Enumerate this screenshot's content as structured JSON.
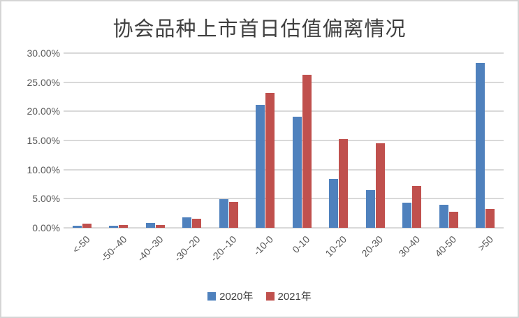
{
  "frame": {
    "background": "#ffffff",
    "border_color": "#d5d5d5"
  },
  "chart_data": {
    "type": "bar",
    "title": "协会品种上市首日估值偏离情况",
    "categories": [
      "<-50",
      "-50--40",
      "-40--30",
      "-30--20",
      "-20--10",
      "-10-0",
      "0-10",
      "10-20",
      "20-30",
      "30-40",
      "40-50",
      ">50"
    ],
    "series": [
      {
        "name": "2020年",
        "color": "#4f81bd",
        "values": [
          0.3,
          0.3,
          0.8,
          1.8,
          4.9,
          21.1,
          19.1,
          8.4,
          6.5,
          4.3,
          4.0,
          28.3
        ]
      },
      {
        "name": "2021年",
        "color": "#c0504d",
        "values": [
          0.7,
          0.5,
          0.5,
          1.6,
          4.4,
          23.1,
          26.3,
          15.2,
          14.5,
          7.2,
          2.7,
          3.2
        ]
      }
    ],
    "xlabel": "",
    "ylabel": "",
    "ylim": [
      0,
      30
    ],
    "ytick_step": 5,
    "ytick_labels": [
      "0.00%",
      "5.00%",
      "10.00%",
      "15.00%",
      "20.00%",
      "25.00%",
      "30.00%"
    ],
    "grid": true,
    "legend_position": "bottom",
    "colors": {
      "gridline": "#d9d9d9",
      "axis_text": "#595959",
      "title_text": "#404040",
      "legend_text": "#404040"
    }
  }
}
